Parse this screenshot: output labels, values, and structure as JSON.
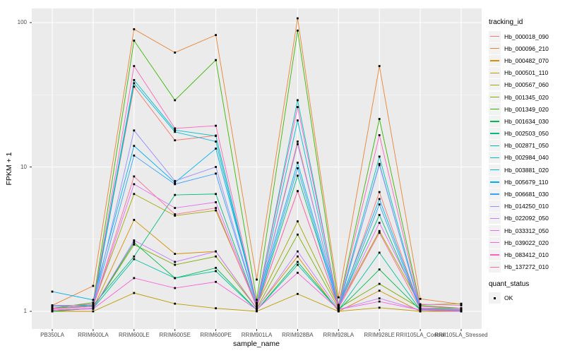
{
  "figure": {
    "background": "#FFFFFF",
    "panel_background": "#EBEBEB",
    "gridline_color": "#FFFFFF",
    "axis_text_color": "#4D4D4D",
    "y_axis_title": "FPKM + 1",
    "x_axis_title": "sample_name"
  },
  "legend": {
    "tracking_title": "tracking_id",
    "quant_title": "quant_status",
    "quant_items": [
      {
        "label": "OK",
        "marker": "black-square",
        "color": "#000000"
      }
    ]
  },
  "chart_data": {
    "type": "line",
    "title": "",
    "xlabel": "sample_name",
    "ylabel": "FPKM + 1",
    "legend_position": "right",
    "grid": true,
    "point_marker": {
      "shape": "square",
      "color": "#000000",
      "legend": "OK"
    },
    "x_axis": {
      "label": "sample_name",
      "categories": [
        "PB350LA",
        "RRIM600LA",
        "RRIM600LE",
        "RRIM600SE",
        "RRIM600PE",
        "RRIM901LA",
        "RRIM928BA",
        "RRIM928LA",
        "RRIM928LE",
        "RRII105LA_Control",
        "RRII105LA_Stressed"
      ]
    },
    "y_axis": {
      "label": "FPKM + 1",
      "scale": "log10",
      "ticks": [
        1,
        10,
        100
      ],
      "minor_ticks": [
        3.1623,
        31.623
      ],
      "range_approx": [
        0.76,
        125
      ]
    },
    "series": [
      {
        "name": "Hb_000018_090",
        "color": "#F8766D",
        "values": [
          1.05,
          1.1,
          36,
          15.3,
          16.5,
          1.1,
          15,
          1.05,
          6.7,
          1.05,
          1.0
        ]
      },
      {
        "name": "Hb_000096_210",
        "color": "#EA8331",
        "values": [
          1.1,
          1.5,
          90,
          62,
          82,
          1.66,
          107,
          1.25,
          50,
          1.22,
          1.12
        ]
      },
      {
        "name": "Hb_000482_070",
        "color": "#D89000",
        "values": [
          1.0,
          1.05,
          4.3,
          2.5,
          2.6,
          1.05,
          2.4,
          1.0,
          1.39,
          1.0,
          1.0
        ]
      },
      {
        "name": "Hb_000501_110",
        "color": "#C09B00",
        "values": [
          1.0,
          1.0,
          1.34,
          1.13,
          1.05,
          1.0,
          1.32,
          1.0,
          1.06,
          1.0,
          1.0
        ]
      },
      {
        "name": "Hb_000567_060",
        "color": "#A3A500",
        "values": [
          1.05,
          1.1,
          6.5,
          4.6,
          5.0,
          1.1,
          4.2,
          1.08,
          3.6,
          1.11,
          1.13
        ]
      },
      {
        "name": "Hb_001345_020",
        "color": "#7CAE00",
        "values": [
          1.02,
          1.05,
          2.9,
          2.1,
          2.4,
          1.05,
          3.4,
          1.05,
          1.55,
          1.05,
          1.05
        ]
      },
      {
        "name": "Hb_001349_020",
        "color": "#39B600",
        "values": [
          1.05,
          1.15,
          75,
          29,
          55,
          1.2,
          88,
          1.11,
          21.5,
          1.1,
          1.05
        ]
      },
      {
        "name": "Hb_001634_030",
        "color": "#00BB4E",
        "values": [
          1.0,
          1.05,
          3.0,
          1.7,
          2.0,
          1.02,
          2.2,
          1.02,
          1.95,
          1.02,
          1.0
        ]
      },
      {
        "name": "Hb_002503_050",
        "color": "#00BF7D",
        "values": [
          1.05,
          1.1,
          2.4,
          6.4,
          6.5,
          1.08,
          8.7,
          1.08,
          4.65,
          1.05,
          1.02
        ]
      },
      {
        "name": "Hb_002871_050",
        "color": "#00C1A3",
        "values": [
          1.02,
          1.05,
          2.3,
          1.7,
          1.9,
          1.02,
          2.1,
          1.02,
          2.55,
          1.02,
          1.02
        ]
      },
      {
        "name": "Hb_002984_040",
        "color": "#00BFC4",
        "values": [
          1.08,
          1.12,
          40,
          18,
          16.4,
          1.12,
          29,
          1.08,
          11.8,
          1.05,
          1.03
        ]
      },
      {
        "name": "Hb_003881_020",
        "color": "#00BADE",
        "values": [
          1.05,
          1.08,
          38,
          17.5,
          15,
          1.1,
          21,
          1.06,
          10.5,
          1.04,
          1.02
        ]
      },
      {
        "name": "Hb_005679_110",
        "color": "#00B0F6",
        "values": [
          1.37,
          1.2,
          14,
          7.8,
          13.4,
          1.15,
          10.7,
          1.1,
          6.0,
          1.05,
          1.02
        ]
      },
      {
        "name": "Hb_006681_030",
        "color": "#35A2FF",
        "values": [
          1.1,
          1.1,
          12,
          7.6,
          9.0,
          1.1,
          9.8,
          1.05,
          5.5,
          1.03,
          1.01
        ]
      },
      {
        "name": "Hb_014250_010",
        "color": "#9590FF",
        "values": [
          1.05,
          1.08,
          17.9,
          8.0,
          10.0,
          1.1,
          14.4,
          1.08,
          10.3,
          1.05,
          1.02
        ]
      },
      {
        "name": "Hb_022092_050",
        "color": "#C77CFF",
        "values": [
          1.02,
          1.05,
          3.1,
          2.2,
          2.6,
          1.04,
          2.6,
          1.03,
          1.23,
          1.02,
          1.0
        ]
      },
      {
        "name": "Hb_033312_050",
        "color": "#E76BF3",
        "values": [
          1.05,
          1.08,
          7.6,
          5.2,
          5.7,
          1.08,
          6.8,
          1.06,
          4.1,
          1.12,
          1.1
        ]
      },
      {
        "name": "Hb_039022_020",
        "color": "#FA62DB",
        "values": [
          1.02,
          1.04,
          1.7,
          1.45,
          1.6,
          1.03,
          1.85,
          1.03,
          1.17,
          1.02,
          1.0
        ]
      },
      {
        "name": "Hb_083412_010",
        "color": "#FF62BC",
        "values": [
          1.08,
          1.12,
          50,
          18.5,
          19.3,
          1.13,
          26,
          1.1,
          16.6,
          1.08,
          1.05
        ]
      },
      {
        "name": "Hb_137272_010",
        "color": "#FF6A98",
        "values": [
          1.04,
          1.08,
          8.6,
          4.7,
          5.2,
          1.07,
          6.8,
          1.05,
          3.5,
          1.04,
          1.02
        ]
      }
    ]
  }
}
